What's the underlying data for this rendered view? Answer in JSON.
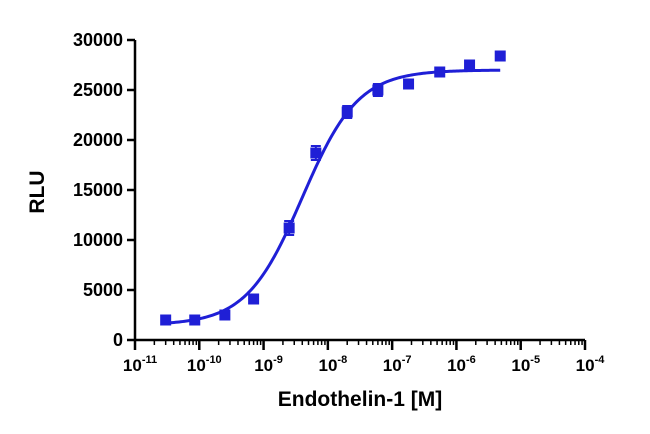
{
  "chart_data": {
    "type": "scatter",
    "xlabel": "Endothelin-1 [M]",
    "ylabel": "RLU",
    "x_scale": "log",
    "xlim": [
      1e-11,
      0.0001
    ],
    "ylim": [
      0,
      30000
    ],
    "y_ticks": [
      "0",
      "5000",
      "10000",
      "15000",
      "20000",
      "25000",
      "30000"
    ],
    "x_ticks": [
      {
        "base": "10",
        "exp": "-11"
      },
      {
        "base": "10",
        "exp": "-10"
      },
      {
        "base": "10",
        "exp": "-9"
      },
      {
        "base": "10",
        "exp": "-8"
      },
      {
        "base": "10",
        "exp": "-7"
      },
      {
        "base": "10",
        "exp": "-6"
      },
      {
        "base": "10",
        "exp": "-5"
      },
      {
        "base": "10",
        "exp": "-4"
      }
    ],
    "grid": false,
    "color": "#1f1fd6",
    "points": [
      {
        "x": 3e-11,
        "y": 2000,
        "err": 150
      },
      {
        "x": 8.5e-11,
        "y": 2000,
        "err": 150
      },
      {
        "x": 2.5e-10,
        "y": 2500,
        "err": 150
      },
      {
        "x": 7e-10,
        "y": 4100,
        "err": 200
      },
      {
        "x": 2.5e-09,
        "y": 11200,
        "err": 700
      },
      {
        "x": 6.5e-09,
        "y": 18700,
        "err": 700
      },
      {
        "x": 2e-08,
        "y": 22800,
        "err": 600
      },
      {
        "x": 6e-08,
        "y": 25000,
        "err": 600
      },
      {
        "x": 1.8e-07,
        "y": 25600,
        "err": 250
      },
      {
        "x": 5.5e-07,
        "y": 26800,
        "err": 450
      },
      {
        "x": 1.6e-06,
        "y": 27500,
        "err": 250
      },
      {
        "x": 4.8e-06,
        "y": 28400,
        "err": 200
      }
    ],
    "fit": {
      "model": "four-parameter logistic",
      "bottom": 1500,
      "top": 27000,
      "ec50": 4e-09,
      "hill_slope": 1.0,
      "x_range": [
        3e-11,
        4.8e-06
      ]
    }
  }
}
